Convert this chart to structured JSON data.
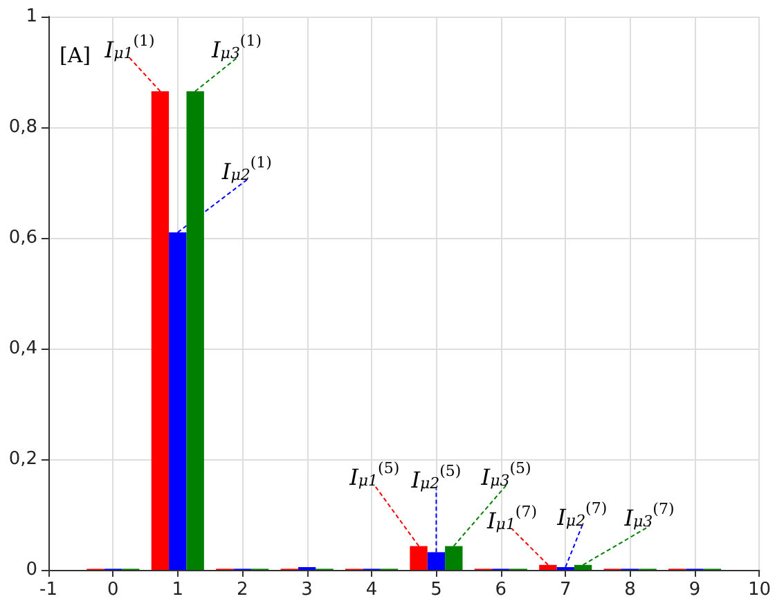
{
  "chart_data": {
    "type": "bar",
    "ylabel": "[A]",
    "x": [
      0,
      1,
      2,
      3,
      4,
      5,
      6,
      7,
      8,
      9
    ],
    "series": [
      {
        "color": "#ff0000",
        "values": [
          0.002,
          0.865,
          0.002,
          0.002,
          0.002,
          0.043,
          0.002,
          0.009,
          0.002,
          0.002
        ]
      },
      {
        "color": "#0000ff",
        "values": [
          0.002,
          0.61,
          0.002,
          0.005,
          0.002,
          0.032,
          0.002,
          0.005,
          0.002,
          0.002
        ]
      },
      {
        "color": "#008000",
        "values": [
          0.002,
          0.865,
          0.002,
          0.002,
          0.002,
          0.043,
          0.002,
          0.009,
          0.002,
          0.002
        ]
      }
    ],
    "xlim": [
      -1,
      10
    ],
    "xticks": [
      -1,
      0,
      1,
      2,
      3,
      4,
      5,
      6,
      7,
      8,
      9,
      10
    ],
    "ylim": [
      0,
      1
    ],
    "yticks": [
      0,
      {
        "value": 0.2,
        "label": "0,2"
      },
      {
        "value": 0.4,
        "label": "0,4"
      },
      {
        "value": 0.6,
        "label": "0,6"
      },
      {
        "value": 0.8,
        "label": "0,8"
      },
      1
    ],
    "grid": true,
    "legend": false,
    "annotations": [
      {
        "text": "I$_{μ1}$$^{(1)}$",
        "x": 0.73,
        "y": 0.865
      },
      {
        "text": "I$_{μ2}$$^{(1)}$",
        "x": 1,
        "y": 0.61
      },
      {
        "text": "I$_{μ3}$$^{(1)}$",
        "x": 1.27,
        "y": 0.865
      },
      {
        "text": "I$_{μ1}$$^{(5)}$",
        "x": 4.73,
        "y": 0.043
      },
      {
        "text": "I$_{μ2}$$^{(5)}$",
        "x": 5,
        "y": 0.032
      },
      {
        "text": "I$_{μ3}$$^{(5)}$",
        "x": 5.27,
        "y": 0.043
      },
      {
        "text": "I$_{μ1}$$^{(7)}$",
        "x": 6.73,
        "y": 0.009
      },
      {
        "text": "I$_{μ2}$$^{(7)}$",
        "x": 7,
        "y": 0.005
      },
      {
        "text": "I$_{μ3}$$^{(7)}$",
        "x": 7.27,
        "y": 0.009
      }
    ]
  }
}
